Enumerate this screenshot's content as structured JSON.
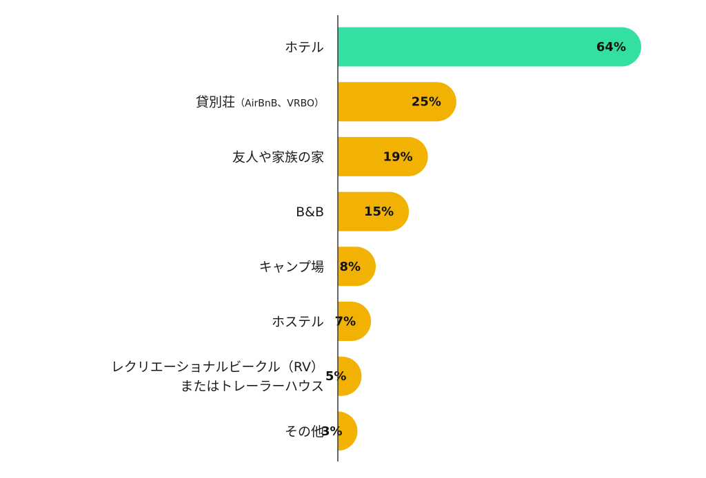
{
  "chart_data": {
    "type": "bar",
    "orientation": "horizontal",
    "title": "",
    "xlabel": "",
    "ylabel": "",
    "xlim": [
      0,
      64
    ],
    "grid": false,
    "legend": "none",
    "value_suffix": "%",
    "highlight_color": "#34e0a1",
    "bar_color": "#f2b203",
    "axis_color": "#333333",
    "categories": [
      {
        "lines": [
          "ホテル"
        ],
        "note": ""
      },
      {
        "lines": [
          "貸別荘"
        ],
        "note": "（AirBnB、VRBO）"
      },
      {
        "lines": [
          "友人や家族の家"
        ],
        "note": ""
      },
      {
        "lines": [
          "B&B"
        ],
        "note": ""
      },
      {
        "lines": [
          "キャンプ場"
        ],
        "note": ""
      },
      {
        "lines": [
          "ホステル"
        ],
        "note": ""
      },
      {
        "lines": [
          "レクリエーショナルビークル（RV）",
          "またはトレーラーハウス"
        ],
        "note": ""
      },
      {
        "lines": [
          "その他"
        ],
        "note": ""
      }
    ],
    "values": [
      64,
      25,
      19,
      15,
      8,
      7,
      5,
      3
    ],
    "value_labels": [
      "64%",
      "25%",
      "19%",
      "15%",
      "8%",
      "7%",
      "5%",
      "3%"
    ],
    "highlighted_index": 0
  }
}
